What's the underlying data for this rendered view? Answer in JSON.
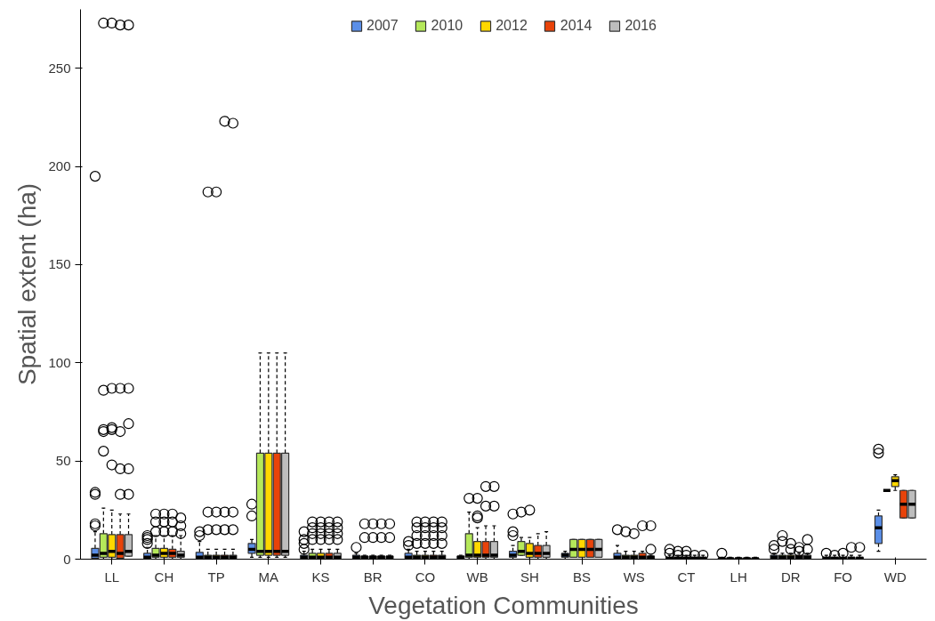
{
  "chart_data": {
    "type": "box",
    "xlabel": "Vegetation Communities",
    "ylabel": "Spatial extent (ha)",
    "ylim": [
      0,
      280
    ],
    "yticks": [
      0,
      50,
      100,
      150,
      200,
      250
    ],
    "grid": false,
    "legend": "top",
    "categories": [
      "LL",
      "CH",
      "TP",
      "MA",
      "KS",
      "BR",
      "CO",
      "WB",
      "SH",
      "BS",
      "WS",
      "CT",
      "LH",
      "DR",
      "FO",
      "WD"
    ],
    "series": [
      {
        "name": "2007",
        "color": "#5b8fe8",
        "boxes": [
          {
            "low": 0,
            "q1": 0.5,
            "median": 2,
            "q3": 5.5,
            "high": 14,
            "outliers": [
              17,
              18,
              33,
              34,
              195
            ]
          },
          {
            "low": 0,
            "q1": 0.5,
            "median": 1,
            "q3": 3,
            "high": 6,
            "outliers": [
              8,
              10,
              11,
              12
            ]
          },
          {
            "low": 0,
            "q1": 0.5,
            "median": 1,
            "q3": 3.5,
            "high": 9,
            "outliers": [
              12,
              14
            ]
          },
          {
            "low": 1,
            "q1": 3,
            "median": 5,
            "q3": 8,
            "high": 10,
            "outliers": [
              22,
              28
            ]
          },
          {
            "low": 0,
            "q1": 0.5,
            "median": 1,
            "q3": 2,
            "high": 4,
            "outliers": [
              5,
              8,
              10,
              14
            ]
          },
          {
            "low": 0,
            "q1": 0.5,
            "median": 1,
            "q3": 2,
            "high": 3,
            "outliers": [
              6
            ]
          },
          {
            "low": 0,
            "q1": 0.5,
            "median": 1,
            "q3": 3,
            "high": 5,
            "outliers": [
              7,
              9
            ]
          },
          {
            "low": 0,
            "q1": 0.5,
            "median": 1,
            "q3": 1.5,
            "high": 2
          },
          {
            "low": 0,
            "q1": 1,
            "median": 2,
            "q3": 4,
            "high": 7,
            "outliers": [
              12,
              14,
              23
            ]
          },
          {
            "low": 0,
            "q1": 1,
            "median": 2,
            "q3": 3,
            "high": 4
          },
          {
            "low": 0,
            "q1": 0.5,
            "median": 1,
            "q3": 3,
            "high": 7,
            "outliers": [
              15
            ]
          },
          {
            "low": 0,
            "q1": 0.2,
            "median": 0.5,
            "q3": 1,
            "high": 2,
            "outliers": [
              3,
              5
            ]
          },
          {
            "low": 0,
            "q1": 0,
            "median": 0.2,
            "q3": 0.5,
            "high": 1,
            "outliers": [
              3
            ]
          },
          {
            "low": 0,
            "q1": 0.5,
            "median": 1,
            "q3": 2,
            "high": 3,
            "outliers": [
              5,
              7
            ]
          },
          {
            "low": 0,
            "q1": 0,
            "median": 0.5,
            "q3": 1,
            "high": 2,
            "outliers": [
              3
            ]
          },
          {
            "low": 4,
            "q1": 8,
            "median": 16,
            "q3": 22,
            "high": 25,
            "outliers": [
              54,
              56
            ]
          }
        ]
      },
      {
        "name": "2010",
        "color": "#b5e85a",
        "boxes": [
          {
            "low": 0,
            "q1": 1,
            "median": 3,
            "q3": 13,
            "high": 26,
            "outliers": [
              55,
              65,
              66,
              86,
              273
            ]
          },
          {
            "low": 0,
            "q1": 1,
            "median": 2,
            "q3": 5.5,
            "high": 12,
            "outliers": [
              14,
              19,
              23
            ]
          },
          {
            "low": 0,
            "q1": 0.5,
            "median": 1,
            "q3": 2,
            "high": 5,
            "outliers": [
              15,
              24,
              187
            ]
          },
          {
            "low": 1,
            "q1": 2,
            "median": 4,
            "q3": 54,
            "high": 105
          },
          {
            "low": 0,
            "q1": 0.5,
            "median": 1,
            "q3": 3,
            "high": 5,
            "outliers": [
              10,
              13,
              16,
              19
            ]
          },
          {
            "low": 0,
            "q1": 0.5,
            "median": 1,
            "q3": 1.5,
            "high": 2,
            "outliers": [
              11,
              18
            ]
          },
          {
            "low": 0,
            "q1": 0.5,
            "median": 1,
            "q3": 2,
            "high": 4,
            "outliers": [
              8,
              12,
              16,
              19
            ]
          },
          {
            "low": 0,
            "q1": 1,
            "median": 2,
            "q3": 13,
            "high": 24,
            "outliers": [
              31
            ]
          },
          {
            "low": 2,
            "q1": 2,
            "median": 4,
            "q3": 9,
            "high": 11,
            "outliers": [
              24
            ]
          },
          {
            "low": 1,
            "q1": 1,
            "median": 5,
            "q3": 10,
            "high": 10
          },
          {
            "low": 0,
            "q1": 0.5,
            "median": 1,
            "q3": 2,
            "high": 4,
            "outliers": [
              14
            ]
          },
          {
            "low": 0,
            "q1": 0.2,
            "median": 0.5,
            "q3": 1,
            "high": 2,
            "outliers": [
              2,
              4
            ]
          },
          {
            "low": 0,
            "q1": 0,
            "median": 0.2,
            "q3": 0.5,
            "high": 1
          },
          {
            "low": 0,
            "q1": 0.5,
            "median": 1,
            "q3": 2,
            "high": 3,
            "outliers": [
              9,
              12
            ]
          },
          {
            "low": 0,
            "q1": 0,
            "median": 0.5,
            "q3": 1,
            "high": 2,
            "outliers": [
              2
            ]
          },
          {
            "low": 35,
            "q1": 35,
            "median": 35,
            "q3": 35,
            "high": 35
          }
        ]
      },
      {
        "name": "2012",
        "color": "#ffd700",
        "boxes": [
          {
            "low": 0,
            "q1": 1,
            "median": 4,
            "q3": 12.5,
            "high": 25,
            "outliers": [
              48,
              66,
              67,
              87,
              273
            ]
          },
          {
            "low": 0,
            "q1": 1,
            "median": 3,
            "q3": 5.5,
            "high": 12,
            "outliers": [
              14,
              19,
              23
            ]
          },
          {
            "low": 0,
            "q1": 0.5,
            "median": 1,
            "q3": 2,
            "high": 5,
            "outliers": [
              15,
              24,
              187
            ]
          },
          {
            "low": 1,
            "q1": 2,
            "median": 4,
            "q3": 54,
            "high": 105
          },
          {
            "low": 0,
            "q1": 0.5,
            "median": 1,
            "q3": 3,
            "high": 5,
            "outliers": [
              10,
              13,
              16,
              19
            ]
          },
          {
            "low": 0,
            "q1": 0.5,
            "median": 1,
            "q3": 1.5,
            "high": 2,
            "outliers": [
              11,
              18
            ]
          },
          {
            "low": 0,
            "q1": 0.5,
            "median": 1,
            "q3": 2,
            "high": 4,
            "outliers": [
              8,
              12,
              16,
              19
            ]
          },
          {
            "low": 0,
            "q1": 1,
            "median": 2,
            "q3": 9,
            "high": 16,
            "outliers": [
              21,
              22,
              31
            ]
          },
          {
            "low": 0,
            "q1": 1,
            "median": 3,
            "q3": 8,
            "high": 11,
            "outliers": [
              25
            ]
          },
          {
            "low": 1,
            "q1": 1,
            "median": 5,
            "q3": 10,
            "high": 10
          },
          {
            "low": 0,
            "q1": 0.5,
            "median": 1,
            "q3": 2,
            "high": 4,
            "outliers": [
              13
            ]
          },
          {
            "low": 0,
            "q1": 0.2,
            "median": 0.5,
            "q3": 1,
            "high": 2,
            "outliers": [
              2,
              4
            ]
          },
          {
            "low": 0,
            "q1": 0,
            "median": 0.2,
            "q3": 0.5,
            "high": 1
          },
          {
            "low": 0,
            "q1": 0.5,
            "median": 1,
            "q3": 2,
            "high": 3,
            "outliers": [
              5,
              8
            ]
          },
          {
            "low": 0,
            "q1": 0,
            "median": 0.5,
            "q3": 1,
            "high": 2,
            "outliers": [
              3
            ]
          },
          {
            "low": 35,
            "q1": 37,
            "median": 40,
            "q3": 42,
            "high": 43
          }
        ]
      },
      {
        "name": "2014",
        "color": "#e8430a",
        "boxes": [
          {
            "low": 0,
            "q1": 0.5,
            "median": 3,
            "q3": 12.5,
            "high": 23,
            "outliers": [
              33,
              46,
              65,
              87,
              272
            ]
          },
          {
            "low": 0,
            "q1": 1,
            "median": 3,
            "q3": 5,
            "high": 12,
            "outliers": [
              14,
              19,
              23
            ]
          },
          {
            "low": 0,
            "q1": 0.5,
            "median": 1,
            "q3": 2,
            "high": 5,
            "outliers": [
              15,
              24,
              223
            ]
          },
          {
            "low": 1,
            "q1": 2,
            "median": 4,
            "q3": 54,
            "high": 105
          },
          {
            "low": 0,
            "q1": 0.5,
            "median": 1,
            "q3": 3,
            "high": 5,
            "outliers": [
              10,
              13,
              16,
              19
            ]
          },
          {
            "low": 0,
            "q1": 0.5,
            "median": 1,
            "q3": 1.5,
            "high": 2,
            "outliers": [
              11,
              18
            ]
          },
          {
            "low": 0,
            "q1": 0.5,
            "median": 1,
            "q3": 2,
            "high": 4,
            "outliers": [
              8,
              12,
              16,
              19
            ]
          },
          {
            "low": 0,
            "q1": 1,
            "median": 2,
            "q3": 9,
            "high": 17,
            "outliers": [
              27,
              37
            ]
          },
          {
            "low": 0,
            "q1": 1,
            "median": 3,
            "q3": 7,
            "high": 13
          },
          {
            "low": 1,
            "q1": 1,
            "median": 5,
            "q3": 10,
            "high": 10
          },
          {
            "low": 0,
            "q1": 0.5,
            "median": 1,
            "q3": 3,
            "high": 4,
            "outliers": [
              17
            ]
          },
          {
            "low": 0,
            "q1": 0.2,
            "median": 0.5,
            "q3": 1,
            "high": 2,
            "outliers": [
              2
            ]
          },
          {
            "low": 0,
            "q1": 0,
            "median": 0.2,
            "q3": 0.5,
            "high": 1
          },
          {
            "low": 0,
            "q1": 0.5,
            "median": 1,
            "q3": 2,
            "high": 3,
            "outliers": [
              4,
              6
            ]
          },
          {
            "low": 0,
            "q1": 0,
            "median": 0.5,
            "q3": 1,
            "high": 2,
            "outliers": [
              6
            ]
          },
          {
            "low": 21,
            "q1": 21,
            "median": 28,
            "q3": 35,
            "high": 35
          }
        ]
      },
      {
        "name": "2016",
        "color": "#bdbdbd",
        "boxes": [
          {
            "low": 1.5,
            "q1": 1.5,
            "median": 4,
            "q3": 12.5,
            "high": 23,
            "outliers": [
              33,
              46,
              69,
              87,
              272
            ]
          },
          {
            "low": 0,
            "q1": 1,
            "median": 2,
            "q3": 4,
            "high": 12,
            "outliers": [
              13,
              17,
              21
            ]
          },
          {
            "low": 0,
            "q1": 0.5,
            "median": 1,
            "q3": 2,
            "high": 5,
            "outliers": [
              15,
              24,
              222
            ]
          },
          {
            "low": 1,
            "q1": 2,
            "median": 4,
            "q3": 54,
            "high": 105
          },
          {
            "low": 0,
            "q1": 0.5,
            "median": 1,
            "q3": 3,
            "high": 5,
            "outliers": [
              10,
              13,
              16,
              19
            ]
          },
          {
            "low": 0,
            "q1": 0.5,
            "median": 1,
            "q3": 1.5,
            "high": 2,
            "outliers": [
              11,
              18
            ]
          },
          {
            "low": 0,
            "q1": 0.5,
            "median": 1,
            "q3": 2,
            "high": 4,
            "outliers": [
              8,
              12,
              16,
              19
            ]
          },
          {
            "low": 0,
            "q1": 1,
            "median": 2,
            "q3": 9,
            "high": 17,
            "outliers": [
              27,
              37
            ]
          },
          {
            "low": 0,
            "q1": 1,
            "median": 3,
            "q3": 7,
            "high": 14
          },
          {
            "low": 1,
            "q1": 1,
            "median": 5,
            "q3": 10,
            "high": 10
          },
          {
            "low": 0,
            "q1": 0.5,
            "median": 1,
            "q3": 1.5,
            "high": 2,
            "outliers": [
              5,
              17
            ]
          },
          {
            "low": 0,
            "q1": 0.2,
            "median": 0.5,
            "q3": 1,
            "high": 2,
            "outliers": [
              2
            ]
          },
          {
            "low": 0,
            "q1": 0,
            "median": 0.2,
            "q3": 0.5,
            "high": 1
          },
          {
            "low": 0,
            "q1": 0.5,
            "median": 1,
            "q3": 2,
            "high": 3,
            "outliers": [
              5,
              10
            ]
          },
          {
            "low": 0,
            "q1": 0,
            "median": 0.5,
            "q3": 1,
            "high": 2,
            "outliers": [
              6
            ]
          },
          {
            "low": 21,
            "q1": 21,
            "median": 28,
            "q3": 35,
            "high": 35
          }
        ]
      }
    ]
  }
}
